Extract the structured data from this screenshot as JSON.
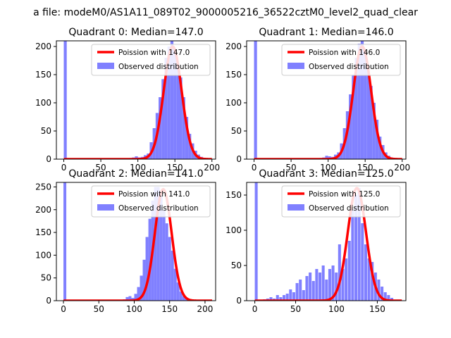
{
  "figure": {
    "suptitle": "a file: modeM0/AS1A11_089T02_9000005216_36522cztM0_level2_quad_clear"
  },
  "colors": {
    "hist": "#8080ff",
    "fit": "#ff0000",
    "axes": "#000000",
    "legend_border": "#cccccc"
  },
  "chart_data": [
    {
      "type": "bar",
      "title": "Quadrant 0: Median=147.0",
      "median": 147.0,
      "xlim": [
        -10,
        205
      ],
      "ylim": [
        0,
        210
      ],
      "xticks": [
        0,
        50,
        100,
        150,
        200
      ],
      "yticks": [
        0,
        50,
        100,
        150,
        200
      ],
      "legend": [
        "Poission with 147.0",
        "Observed distribution"
      ],
      "legend_position": "top-right",
      "hist_bin_width": 4,
      "hist_x": [
        0,
        88,
        92,
        96,
        100,
        104,
        108,
        112,
        116,
        120,
        124,
        128,
        132,
        136,
        140,
        144,
        148,
        152,
        156,
        160,
        164,
        168,
        172,
        176,
        180,
        184,
        188,
        192
      ],
      "hist_y": [
        210,
        2,
        3,
        5,
        3,
        4,
        7,
        10,
        30,
        55,
        82,
        110,
        142,
        180,
        200,
        210,
        195,
        170,
        145,
        110,
        75,
        45,
        28,
        15,
        8,
        4,
        2,
        1
      ],
      "fit_mu": 147.0,
      "fit_peak": 200
    },
    {
      "type": "bar",
      "title": "Quadrant 1: Median=146.0",
      "median": 146.0,
      "xlim": [
        -10,
        205
      ],
      "ylim": [
        0,
        210
      ],
      "xticks": [
        0,
        50,
        100,
        150,
        200
      ],
      "yticks": [
        0,
        50,
        100,
        150,
        200
      ],
      "legend": [
        "Poission with 146.0",
        "Observed distribution"
      ],
      "legend_position": "top-right",
      "hist_bin_width": 4,
      "hist_x": [
        0,
        88,
        92,
        96,
        100,
        104,
        108,
        112,
        116,
        120,
        124,
        128,
        132,
        136,
        140,
        144,
        148,
        152,
        156,
        160,
        164,
        168,
        172,
        176,
        180,
        184,
        188
      ],
      "hist_y": [
        210,
        2,
        3,
        6,
        5,
        4,
        8,
        12,
        28,
        55,
        85,
        115,
        150,
        180,
        205,
        210,
        190,
        160,
        130,
        100,
        70,
        40,
        25,
        12,
        6,
        3,
        1
      ],
      "fit_mu": 146.0,
      "fit_peak": 200
    },
    {
      "type": "bar",
      "title": "Quadrant 2: Median=141.0",
      "median": 141.0,
      "xlim": [
        -10,
        215
      ],
      "ylim": [
        0,
        260
      ],
      "xticks": [
        0,
        50,
        100,
        150,
        200
      ],
      "yticks": [
        0,
        50,
        100,
        150,
        200,
        250
      ],
      "legend": [
        "Poission with 141.0",
        "Observed distribution"
      ],
      "legend_position": "top-right",
      "hist_bin_width": 4,
      "hist_x": [
        0,
        84,
        88,
        92,
        96,
        100,
        104,
        108,
        112,
        116,
        120,
        124,
        128,
        132,
        136,
        140,
        144,
        148,
        152,
        156,
        160,
        164,
        168,
        172,
        176
      ],
      "hist_y": [
        260,
        3,
        8,
        10,
        6,
        15,
        30,
        55,
        90,
        140,
        180,
        220,
        250,
        250,
        230,
        200,
        170,
        140,
        110,
        70,
        40,
        20,
        10,
        5,
        2
      ],
      "fit_mu": 141.0,
      "fit_peak": 245
    },
    {
      "type": "bar",
      "title": "Quadrant 3: Median=125.0",
      "median": 125.0,
      "xlim": [
        -10,
        185
      ],
      "ylim": [
        0,
        168
      ],
      "xticks": [
        0,
        50,
        100,
        150
      ],
      "yticks": [
        0,
        50,
        100,
        150
      ],
      "legend": [
        "Poission with 125.0",
        "Observed distribution"
      ],
      "legend_position": "top-right",
      "hist_bin_width": 3.5,
      "hist_x": [
        0,
        10,
        14,
        18,
        22,
        26,
        30,
        34,
        38,
        42,
        46,
        50,
        54,
        58,
        62,
        66,
        70,
        74,
        78,
        82,
        86,
        90,
        94,
        98,
        102,
        106,
        110,
        114,
        118,
        122,
        126,
        130,
        134,
        138,
        142,
        146,
        150,
        154,
        158,
        162,
        166
      ],
      "hist_y": [
        168,
        2,
        3,
        5,
        3,
        8,
        5,
        8,
        10,
        16,
        12,
        25,
        30,
        15,
        35,
        40,
        28,
        45,
        40,
        50,
        30,
        45,
        50,
        40,
        80,
        45,
        60,
        85,
        130,
        150,
        160,
        110,
        80,
        60,
        55,
        40,
        30,
        20,
        12,
        8,
        4
      ],
      "fit_mu": 125.0,
      "fit_peak": 160
    }
  ]
}
